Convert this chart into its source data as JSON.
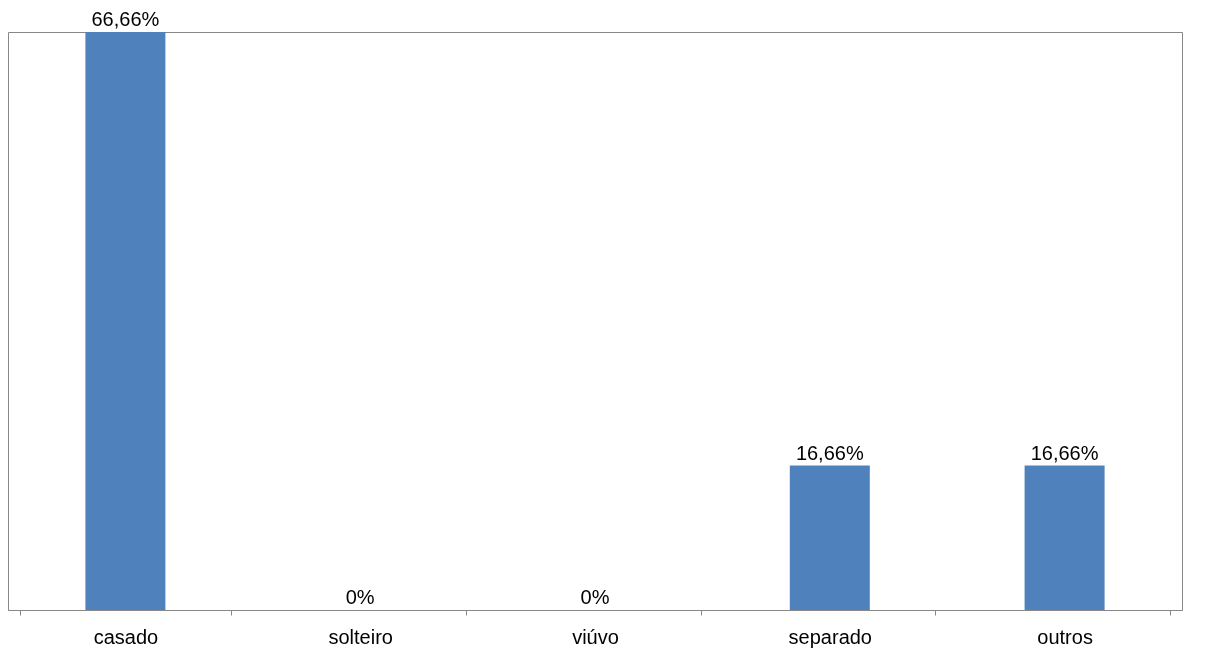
{
  "chart_data": {
    "type": "bar",
    "categories": [
      "casado",
      "solteiro",
      "viúvo",
      "separado",
      "outros"
    ],
    "values": [
      66.66,
      0,
      0,
      16.66,
      16.66
    ],
    "value_labels": [
      "66,66%",
      "0%",
      "0%",
      "16,66%",
      "16,66%"
    ],
    "color": "#4f81bd"
  }
}
